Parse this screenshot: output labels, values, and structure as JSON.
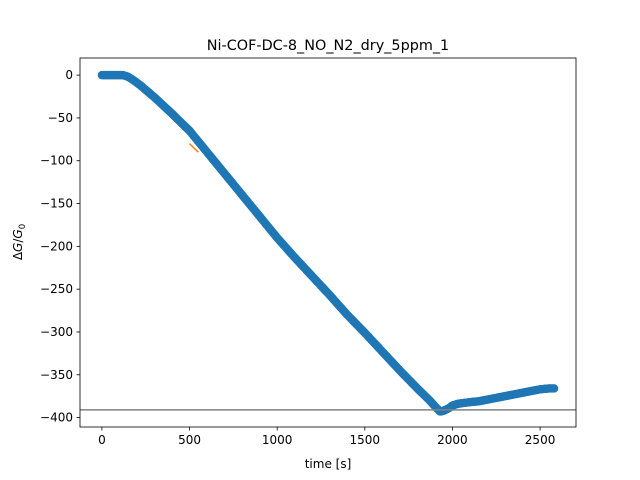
{
  "chart_data": {
    "type": "scatter",
    "title": "Ni-COF-DC-8_NO_N2_dry_5ppm_1",
    "xlabel": "time [s]",
    "ylabel_parts": [
      "Δ",
      "G",
      "/",
      "G",
      "0"
    ],
    "xlim": [
      -125,
      2705
    ],
    "ylim": [
      -411,
      20
    ],
    "xticks": [
      0,
      500,
      1000,
      1500,
      2000,
      2500
    ],
    "xtick_labels": [
      "0",
      "500",
      "1000",
      "1500",
      "2000",
      "2500"
    ],
    "yticks": [
      0,
      -50,
      -100,
      -150,
      -200,
      -250,
      -300,
      -350,
      -400
    ],
    "ytick_labels": [
      "0",
      "−50",
      "−100",
      "−150",
      "−200",
      "−250",
      "−300",
      "−350",
      "−400"
    ],
    "grid": false,
    "series": [
      {
        "kind": "scatter",
        "color": "#1f77b4",
        "points": [
          [
            0,
            0
          ],
          [
            60,
            0
          ],
          [
            120,
            0
          ],
          [
            150,
            -2
          ],
          [
            180,
            -6
          ],
          [
            220,
            -12
          ],
          [
            300,
            -26
          ],
          [
            400,
            -45
          ],
          [
            500,
            -65
          ],
          [
            600,
            -90
          ],
          [
            700,
            -115
          ],
          [
            800,
            -140
          ],
          [
            900,
            -165
          ],
          [
            1000,
            -190
          ],
          [
            1100,
            -213
          ],
          [
            1200,
            -235
          ],
          [
            1300,
            -257
          ],
          [
            1400,
            -280
          ],
          [
            1500,
            -301
          ],
          [
            1600,
            -323
          ],
          [
            1700,
            -345
          ],
          [
            1800,
            -366
          ],
          [
            1870,
            -380
          ],
          [
            1910,
            -389
          ],
          [
            1930,
            -393
          ],
          [
            1950,
            -392
          ],
          [
            1980,
            -389
          ],
          [
            2000,
            -386
          ],
          [
            2030,
            -384
          ],
          [
            2060,
            -383
          ],
          [
            2100,
            -382
          ],
          [
            2150,
            -381
          ],
          [
            2200,
            -379
          ],
          [
            2250,
            -377
          ],
          [
            2300,
            -375
          ],
          [
            2350,
            -373
          ],
          [
            2400,
            -371
          ],
          [
            2450,
            -369
          ],
          [
            2500,
            -367
          ],
          [
            2550,
            -366
          ],
          [
            2580,
            -366
          ]
        ]
      },
      {
        "kind": "line",
        "color": "#ff7f0e",
        "points": [
          [
            500,
            -80
          ],
          [
            550,
            -90
          ]
        ]
      }
    ],
    "hlines": [
      {
        "y": -391,
        "color": "#808080"
      }
    ]
  }
}
